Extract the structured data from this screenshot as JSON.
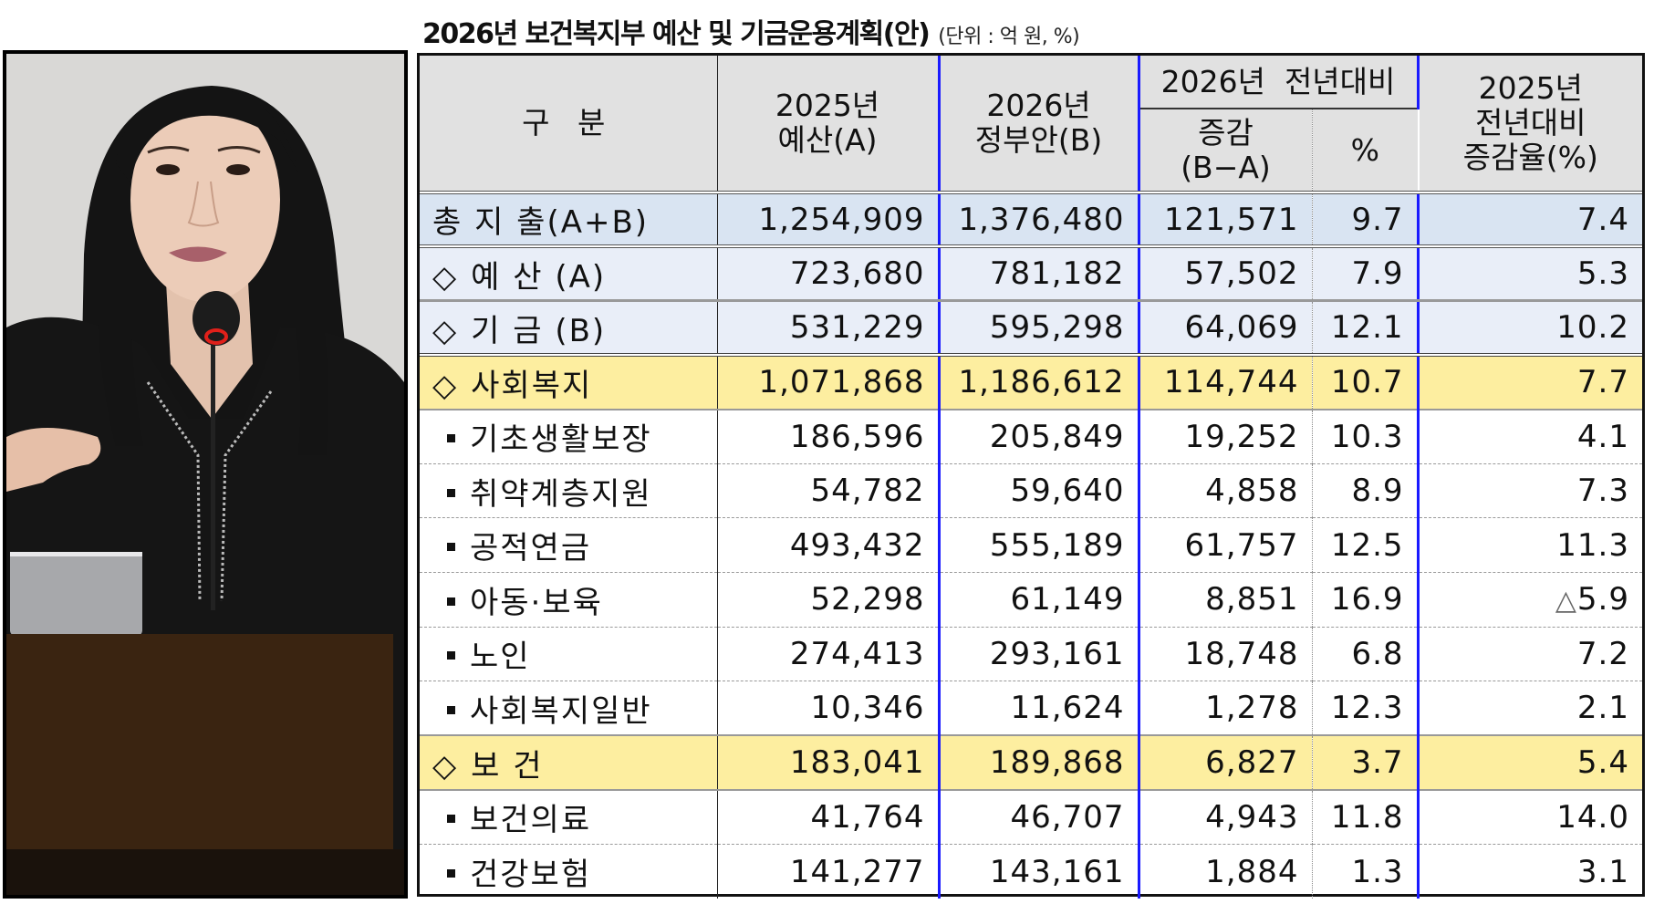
{
  "title": {
    "main": "2026년 보건복지부 예산 및 기금운용계획(안)",
    "unit": "(단위 : 억 원, %)"
  },
  "photo": {
    "subject": "speaker at podium with microphone",
    "colors": {
      "background": "#d9d8d6",
      "hair": "#141414",
      "skin": "#e8c8b4",
      "jacket": "#151515",
      "podium": "#3a2411",
      "laptop": "#a7a8ab",
      "mic_ring": "#e0201a"
    }
  },
  "table": {
    "colors": {
      "header_bg": "#e1e1e1",
      "total_bg": "#d9e4f2",
      "group_bg": "#e9eef8",
      "highlight_bg": "#fdeea0",
      "divider_blue": "#1a1aff"
    },
    "headers": {
      "category": "구 분",
      "budget_2025": [
        "2025년",
        "예산(A)"
      ],
      "proposal_2026": [
        "2026년",
        "정부안(B)"
      ],
      "yoy_2026_group": "2026년  전년대비",
      "change": [
        "증감",
        "(B−A)"
      ],
      "pct": "%",
      "yoy_2025": [
        "2025년",
        "전년대비",
        "증감율(%)"
      ]
    },
    "rows": [
      {
        "type": "total",
        "marker": "",
        "label": "총 지 출(A+B)",
        "a": "1,254,909",
        "b": "1,376,480",
        "diff": "121,571",
        "pct": "9.7",
        "prev_pct": "7.4"
      },
      {
        "type": "group",
        "marker": "◇",
        "label": "예 산 (A)",
        "a": "723,680",
        "b": "781,182",
        "diff": "57,502",
        "pct": "7.9",
        "prev_pct": "5.3"
      },
      {
        "type": "group",
        "marker": "◇",
        "label": "기 금 (B)",
        "a": "531,229",
        "b": "595,298",
        "diff": "64,069",
        "pct": "12.1",
        "prev_pct": "10.2"
      },
      {
        "type": "yellow",
        "marker": "◇",
        "label": "사회복지",
        "a": "1,071,868",
        "b": "1,186,612",
        "diff": "114,744",
        "pct": "10.7",
        "prev_pct": "7.7"
      },
      {
        "type": "detail",
        "marker": "▪",
        "label": "기초생활보장",
        "a": "186,596",
        "b": "205,849",
        "diff": "19,252",
        "pct": "10.3",
        "prev_pct": "4.1"
      },
      {
        "type": "detail",
        "marker": "▪",
        "label": "취약계층지원",
        "a": "54,782",
        "b": "59,640",
        "diff": "4,858",
        "pct": "8.9",
        "prev_pct": "7.3"
      },
      {
        "type": "detail",
        "marker": "▪",
        "label": "공적연금",
        "a": "493,432",
        "b": "555,189",
        "diff": "61,757",
        "pct": "12.5",
        "prev_pct": "11.3"
      },
      {
        "type": "detail",
        "marker": "▪",
        "label": "아동·보육",
        "a": "52,298",
        "b": "61,149",
        "diff": "8,851",
        "pct": "16.9",
        "prev_pct": "△5.9"
      },
      {
        "type": "detail",
        "marker": "▪",
        "label": "노인",
        "a": "274,413",
        "b": "293,161",
        "diff": "18,748",
        "pct": "6.8",
        "prev_pct": "7.2"
      },
      {
        "type": "detail",
        "marker": "▪",
        "label": "사회복지일반",
        "a": "10,346",
        "b": "11,624",
        "diff": "1,278",
        "pct": "12.3",
        "prev_pct": "2.1"
      },
      {
        "type": "yellow",
        "marker": "◇",
        "label": "보 건",
        "a": "183,041",
        "b": "189,868",
        "diff": "6,827",
        "pct": "3.7",
        "prev_pct": "5.4"
      },
      {
        "type": "detail",
        "marker": "▪",
        "label": "보건의료",
        "a": "41,764",
        "b": "46,707",
        "diff": "4,943",
        "pct": "11.8",
        "prev_pct": "14.0"
      },
      {
        "type": "detail",
        "marker": "▪",
        "label": "건강보험",
        "a": "141,277",
        "b": "143,161",
        "diff": "1,884",
        "pct": "1.3",
        "prev_pct": "3.1"
      }
    ]
  }
}
